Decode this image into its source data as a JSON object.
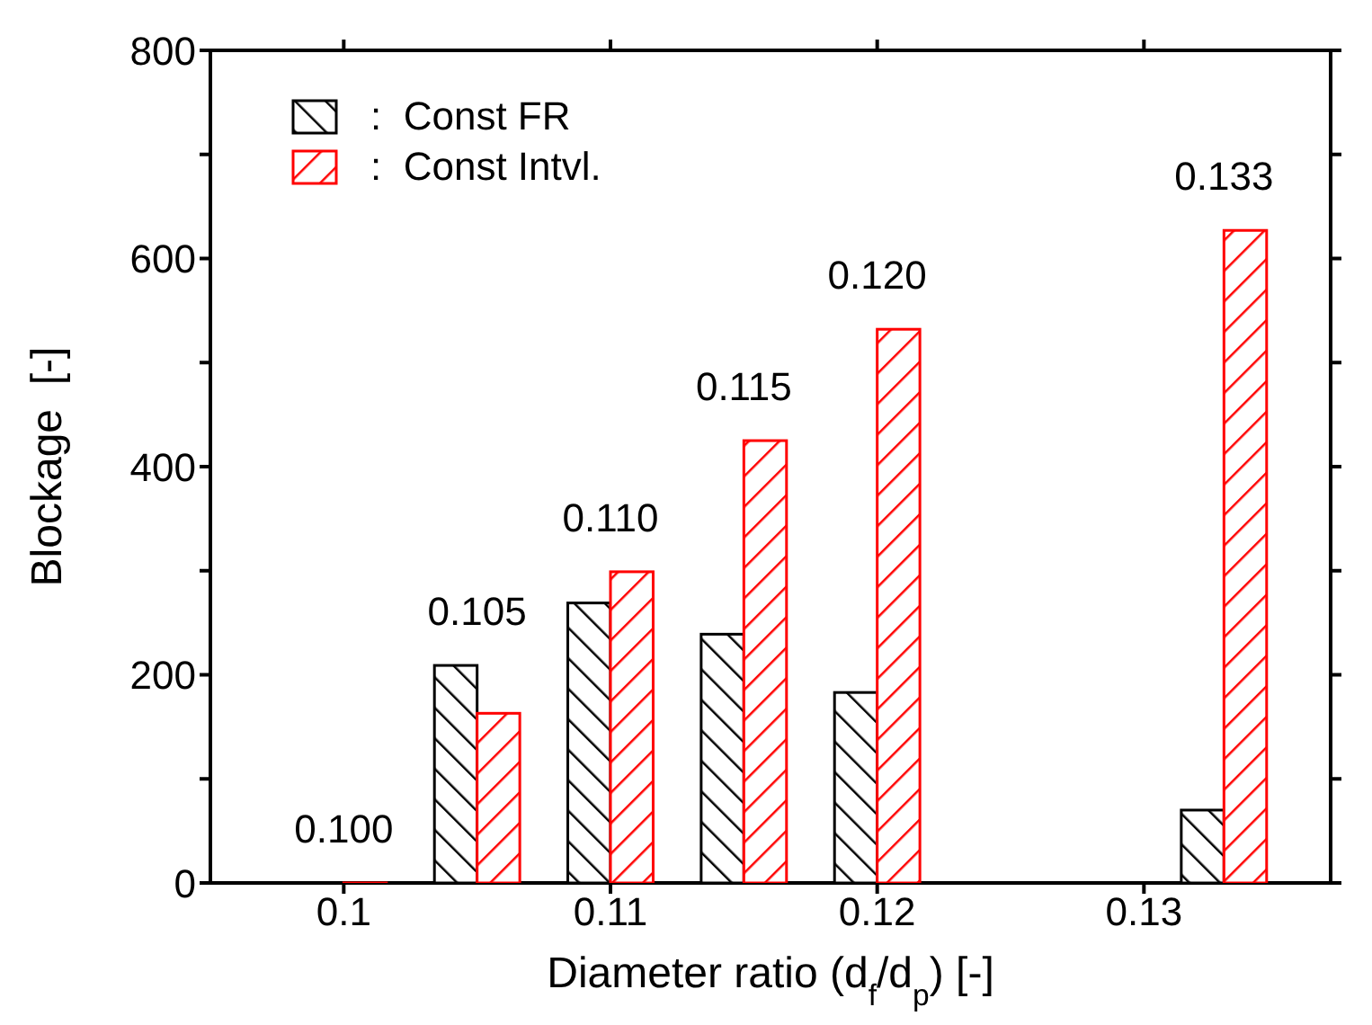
{
  "chart_data": {
    "type": "bar",
    "xlabel": "Diameter ratio (d$_{f}$/d$_{p}$) [-]",
    "ylabel": "Blockage  [-]",
    "x": [
      0.1,
      0.105,
      0.11,
      0.115,
      0.12,
      0.133
    ],
    "series": [
      {
        "name": ":  Const FR",
        "color": "#000000",
        "values": [
          null,
          209,
          269,
          239,
          183,
          70
        ]
      },
      {
        "name": ":  Const Intvl.",
        "color": "#ff0000",
        "values": [
          0,
          163,
          299,
          425,
          532,
          627
        ]
      }
    ],
    "xlim": [
      0.095,
      0.137
    ],
    "xticks": [
      0.1,
      0.11,
      0.12,
      0.13
    ],
    "ylim": [
      0,
      800
    ],
    "yticks": [
      0,
      {
        "value": 100,
        "label": null
      },
      200,
      {
        "value": 300,
        "label": null
      },
      400,
      {
        "value": 500,
        "label": null
      },
      600,
      {
        "value": 700,
        "label": null
      },
      800
    ],
    "annotations": [
      "0.100",
      "0.105",
      "0.110",
      "0.115",
      "0.120",
      "0.133"
    ],
    "legend": "top left"
  }
}
